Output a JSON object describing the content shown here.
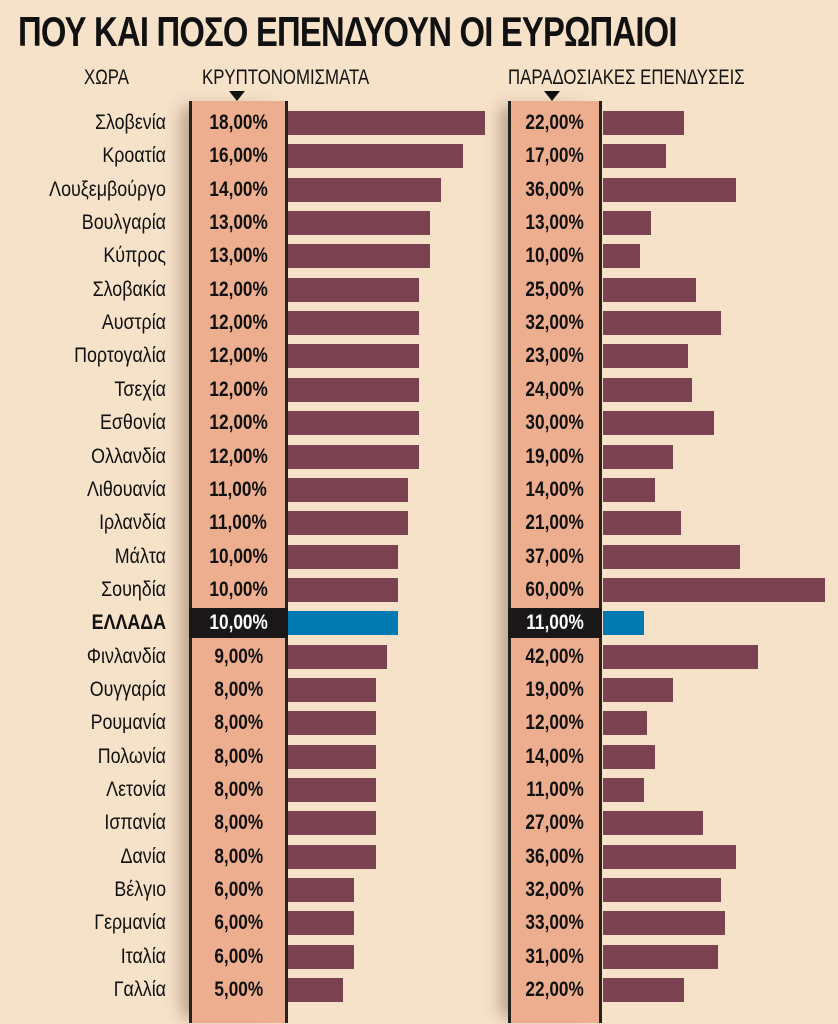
{
  "chart_data": {
    "type": "bar",
    "orientation": "horizontal",
    "title": "ΠΟΥ ΚΑΙ ΠΟΣΟ ΕΠΕΝΔΥΟΥΝ ΟΙ ΕΥΡΩΠΑΙΟΙ",
    "category_header": "ΧΩΡΑ",
    "categories": [
      "Σλοβενία",
      "Κροατία",
      "Λουξεμβούργο",
      "Βουλγαρία",
      "Κύπρος",
      "Σλοβακία",
      "Αυστρία",
      "Πορτογαλία",
      "Τσεχία",
      "Εσθονία",
      "Ολλανδία",
      "Λιθουανία",
      "Ιρλανδία",
      "Μάλτα",
      "Σουηδία",
      "ΕΛΛΑΔΑ",
      "Φινλανδία",
      "Ουγγαρία",
      "Ρουμανία",
      "Πολωνία",
      "Λετονία",
      "Ισπανία",
      "Δανία",
      "Βέλγιο",
      "Γερμανία",
      "Ιταλία",
      "Γαλλία"
    ],
    "series": [
      {
        "name": "ΚΡΥΠΤΟΝΟΜΙΣΜΑΤΑ",
        "values": [
          18,
          16,
          14,
          13,
          13,
          12,
          12,
          12,
          12,
          12,
          12,
          11,
          11,
          10,
          10,
          10,
          9,
          8,
          8,
          8,
          8,
          8,
          8,
          6,
          6,
          6,
          5
        ],
        "labels": [
          "18,00%",
          "16,00%",
          "14,00%",
          "13,00%",
          "13,00%",
          "12,00%",
          "12,00%",
          "12,00%",
          "12,00%",
          "12,00%",
          "12,00%",
          "11,00%",
          "11,00%",
          "10,00%",
          "10,00%",
          "10,00%",
          "9,00%",
          "8,00%",
          "8,00%",
          "8,00%",
          "8,00%",
          "8,00%",
          "8,00%",
          "6,00%",
          "6,00%",
          "6,00%",
          "5,00%"
        ]
      },
      {
        "name": "ΠΑΡΑΔΟΣΙΑΚΕΣ ΕΠΕΝΔΥΣΕΙΣ",
        "values": [
          22,
          17,
          36,
          13,
          10,
          25,
          32,
          23,
          24,
          30,
          19,
          14,
          21,
          37,
          60,
          11,
          42,
          19,
          12,
          14,
          11,
          27,
          36,
          32,
          33,
          31,
          22
        ],
        "labels": [
          "22,00%",
          "17,00%",
          "36,00%",
          "13,00%",
          "10,00%",
          "25,00%",
          "32,00%",
          "23,00%",
          "24,00%",
          "30,00%",
          "19,00%",
          "14,00%",
          "21,00%",
          "37,00%",
          "60,00%",
          "11,00%",
          "42,00%",
          "19,00%",
          "12,00%",
          "14,00%",
          "11,00%",
          "27,00%",
          "36,00%",
          "32,00%",
          "33,00%",
          "31,00%",
          "22,00%"
        ]
      }
    ],
    "unit": "%",
    "highlight": "ΕΛΛΑΔΑ",
    "grid": false,
    "colors": {
      "bar": "#7b4251",
      "highlight_bar": "#0079b1",
      "value_box": "#ecae8e",
      "highlight_box": "#1a1718",
      "background": "#f6e1c9"
    }
  }
}
